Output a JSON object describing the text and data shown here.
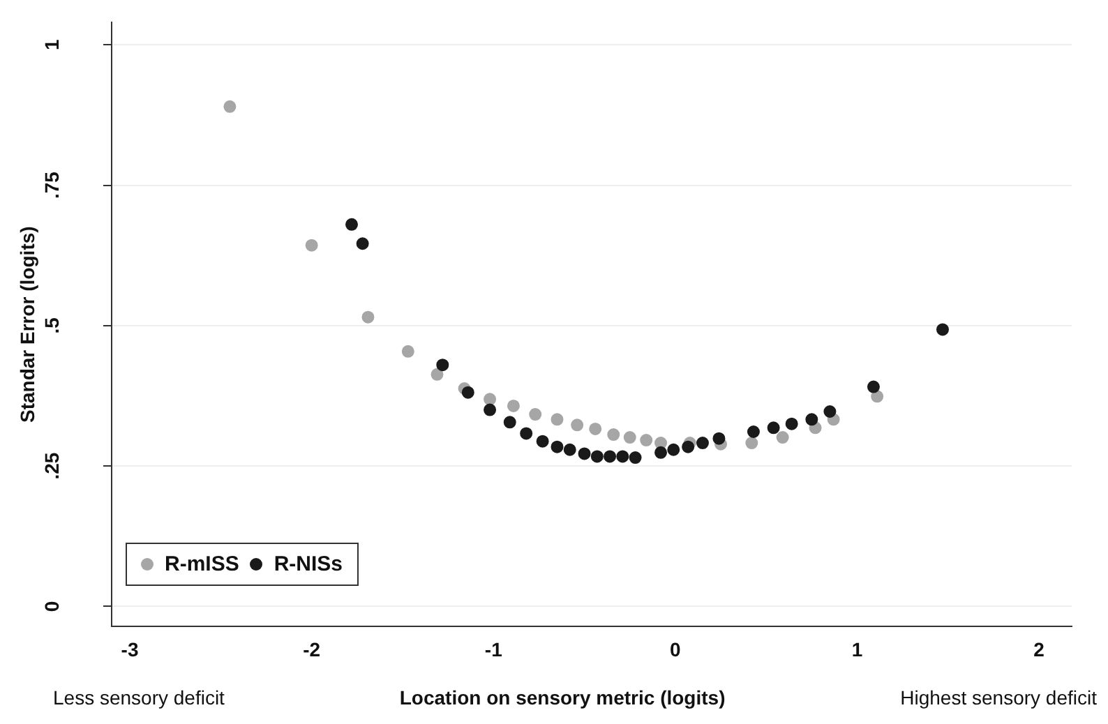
{
  "chart_data": {
    "type": "scatter",
    "ylabel": "Standar Error (logits)",
    "xlabel": "Location on sensory metric (logits)",
    "annotations": [
      "Less sensory deficit",
      "Highest sensory deficit"
    ],
    "xlim": [
      -3.1,
      2.18
    ],
    "xticks": [
      -3,
      -2,
      -1,
      0,
      1,
      2
    ],
    "ylim": [
      -0.036,
      1.04
    ],
    "yticks": [
      0,
      {
        "value": 0.25,
        "label": ".25"
      },
      {
        "value": 0.5,
        "label": ".5"
      },
      {
        "value": 0.75,
        "label": ".75"
      },
      1
    ],
    "grid": "y",
    "legend": "bottom left",
    "marker": "circle",
    "series": [
      {
        "name": "R-mISS",
        "color": "#a6a6a6",
        "x": [
          -2.45,
          -2.0,
          -1.69,
          -1.47,
          -1.31,
          -1.16,
          -1.02,
          -0.89,
          -0.77,
          -0.65,
          -0.54,
          -0.44,
          -0.34,
          -0.25,
          -0.16,
          -0.08,
          0.08,
          0.25,
          0.42,
          0.59,
          0.77,
          0.87,
          1.11
        ],
        "values": [
          0.89,
          0.643,
          0.515,
          0.454,
          0.413,
          0.388,
          0.369,
          0.357,
          0.342,
          0.333,
          0.323,
          0.316,
          0.306,
          0.301,
          0.296,
          0.291,
          0.291,
          0.289,
          0.291,
          0.301,
          0.318,
          0.333,
          0.374
        ]
      },
      {
        "name": "R-NISs",
        "color": "#1a1a1a",
        "x": [
          -1.78,
          -1.72,
          -1.28,
          -1.14,
          -1.02,
          -0.91,
          -0.82,
          -0.73,
          -0.65,
          -0.58,
          -0.5,
          -0.43,
          -0.36,
          -0.29,
          -0.22,
          -0.08,
          -0.01,
          0.07,
          0.15,
          0.24,
          0.43,
          0.54,
          0.64,
          0.75,
          0.85,
          1.09,
          1.47
        ],
        "values": [
          0.68,
          0.646,
          0.43,
          0.381,
          0.35,
          0.328,
          0.308,
          0.294,
          0.284,
          0.279,
          0.272,
          0.267,
          0.267,
          0.267,
          0.265,
          0.274,
          0.279,
          0.284,
          0.291,
          0.299,
          0.311,
          0.318,
          0.325,
          0.333,
          0.347,
          0.391,
          0.493
        ]
      }
    ]
  }
}
